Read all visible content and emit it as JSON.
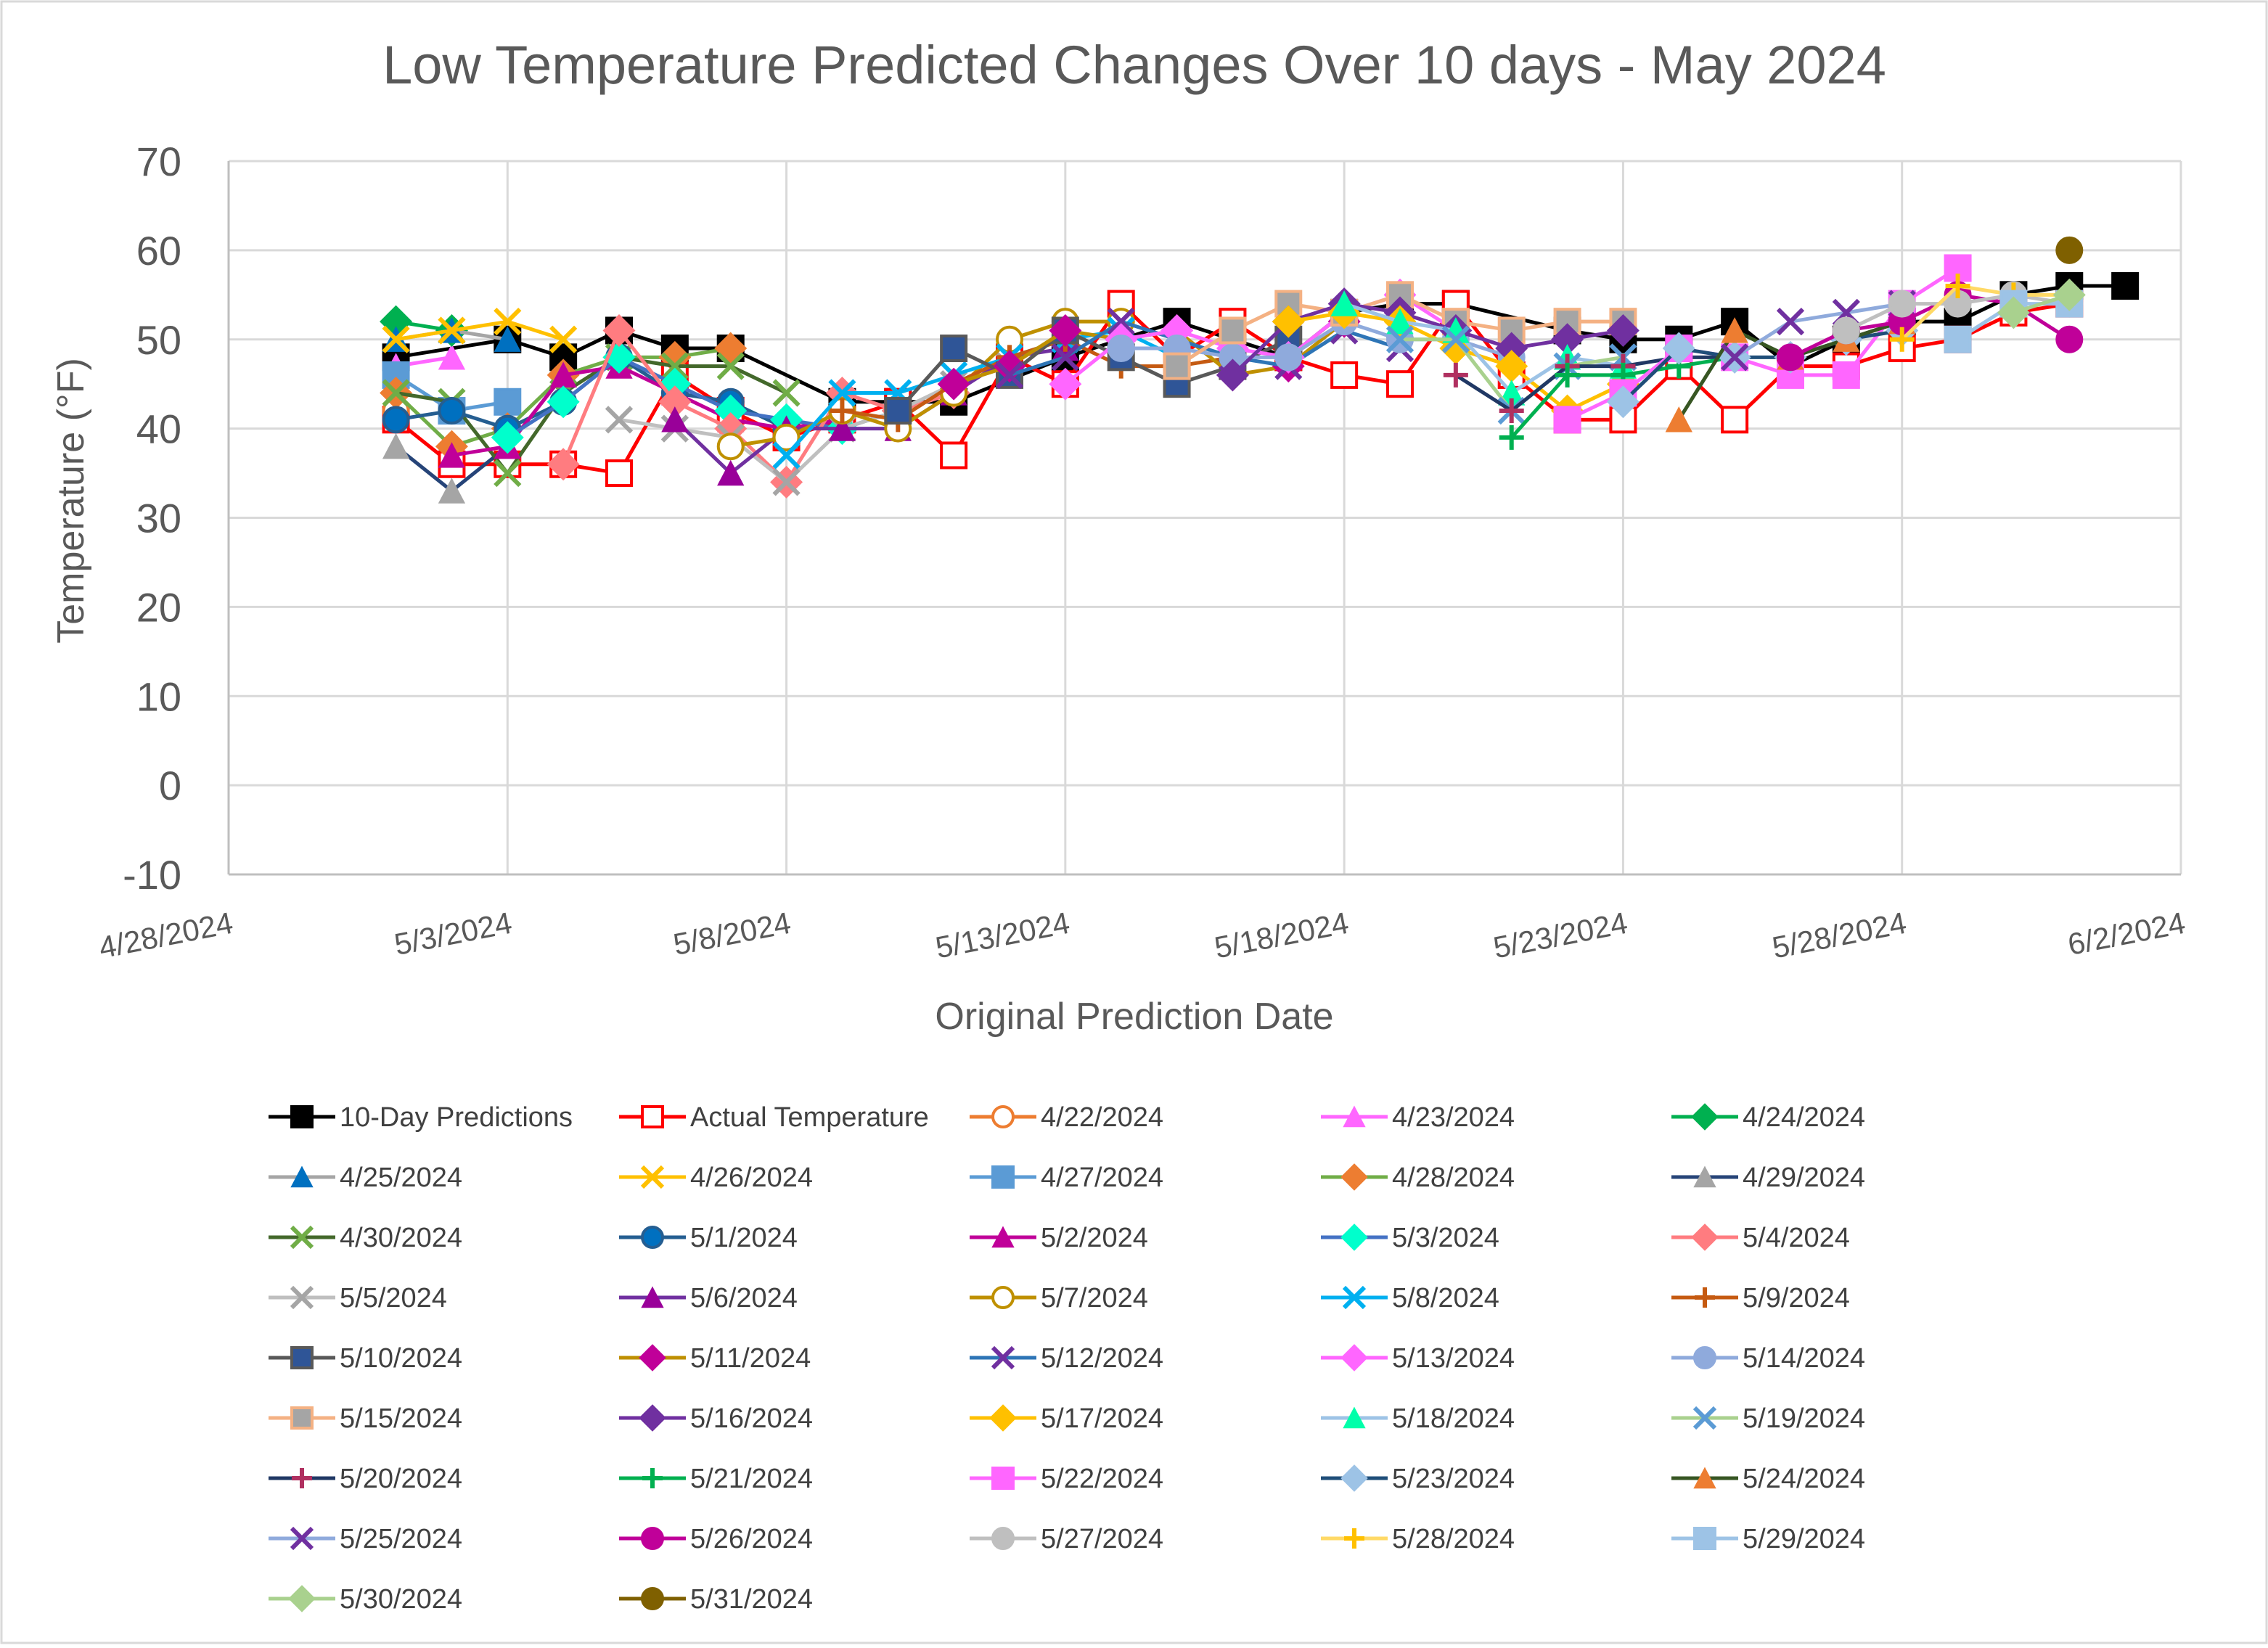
{
  "chart_data": {
    "type": "line",
    "title": "Low Temperature Predicted Changes Over 10 days - May 2024",
    "xlabel": "Original Prediction Date",
    "ylabel": "Temperature (°F)",
    "ylim": [
      -10,
      70
    ],
    "yticks": [
      "-10",
      "0",
      "10",
      "20",
      "30",
      "40",
      "50",
      "60",
      "70"
    ],
    "xlim": [
      0,
      35
    ],
    "xtick_values": [
      0,
      5,
      10,
      15,
      20,
      25,
      30,
      35
    ],
    "xticks": [
      "4/28/2024",
      "5/3/2024",
      "5/8/2024",
      "5/13/2024",
      "5/18/2024",
      "5/23/2024",
      "5/28/2024",
      "6/2/2024"
    ],
    "grid": true,
    "x_units": "days after 4/28/2024",
    "series": [
      {
        "name": "10-Day Predictions",
        "color": "#000000",
        "marker": "square",
        "fill": "#000000",
        "x": [
          3,
          5,
          6,
          7,
          8,
          9,
          11,
          12,
          13,
          15,
          17,
          18,
          19,
          20,
          21,
          22,
          24,
          25,
          26,
          27,
          28,
          29,
          30,
          31,
          32,
          33,
          34
        ],
        "y": [
          48,
          50,
          48,
          51,
          49,
          49,
          43,
          43,
          43,
          48,
          52,
          50,
          48,
          53,
          54,
          54,
          51,
          50,
          50,
          52,
          47,
          50,
          52,
          52,
          55,
          56,
          56
        ]
      },
      {
        "name": "Actual Temperature",
        "color": "#FF0000",
        "marker": "square",
        "fill": "#FFFFFF",
        "x": [
          3,
          4,
          5,
          6,
          7,
          8,
          9,
          10,
          11,
          12,
          13,
          14,
          15,
          16,
          17,
          18,
          19,
          20,
          21,
          22,
          23,
          24,
          25,
          26,
          27,
          28,
          29,
          30,
          31,
          32,
          33
        ],
        "y": [
          41,
          36,
          36,
          36,
          35,
          46,
          42,
          39,
          41,
          43,
          37,
          48,
          45,
          54,
          48,
          52,
          48,
          46,
          45,
          54,
          46,
          41,
          41,
          47,
          41,
          47,
          47,
          49,
          50,
          53,
          54
        ]
      },
      {
        "name": "4/22/2024",
        "color": "#ED7D31",
        "marker": "circle",
        "fill": "#FFFFFF",
        "x": [
          3
        ],
        "y": [
          42
        ]
      },
      {
        "name": "4/23/2024",
        "color": "#FF66FF",
        "marker": "triangle",
        "fill": "#FF66FF",
        "x": [
          3,
          4
        ],
        "y": [
          47,
          48
        ]
      },
      {
        "name": "4/24/2024",
        "color": "#00B050",
        "marker": "diamond",
        "fill": "#00B050",
        "x": [
          3,
          4
        ],
        "y": [
          52,
          51
        ]
      },
      {
        "name": "4/25/2024",
        "color": "#A5A5A5",
        "marker": "triangle",
        "fill": "#0070C0",
        "x": [
          3,
          4,
          5
        ],
        "y": [
          50,
          51,
          50
        ]
      },
      {
        "name": "4/26/2024",
        "color": "#FFC000",
        "marker": "x",
        "fill": "#FFC000",
        "x": [
          3,
          4,
          5,
          6
        ],
        "y": [
          50,
          51,
          52,
          50
        ]
      },
      {
        "name": "4/27/2024",
        "color": "#5B9BD5",
        "marker": "square",
        "fill": "#5B9BD5",
        "x": [
          3,
          4,
          5
        ],
        "y": [
          46,
          42,
          43
        ]
      },
      {
        "name": "4/28/2024",
        "color": "#70AD47",
        "marker": "diamond",
        "fill": "#ED7D31",
        "x": [
          3,
          4,
          5,
          6,
          7,
          8,
          9
        ],
        "y": [
          44,
          38,
          40,
          46,
          48,
          48,
          49
        ]
      },
      {
        "name": "4/29/2024",
        "color": "#264478",
        "marker": "triangle",
        "fill": "#A5A5A5",
        "x": [
          3,
          4,
          5,
          6
        ],
        "y": [
          38,
          33,
          38,
          46
        ]
      },
      {
        "name": "4/30/2024",
        "color": "#43682B",
        "marker": "x",
        "fill": "#70AD47",
        "x": [
          3,
          4,
          5,
          6,
          7,
          8,
          9,
          10
        ],
        "y": [
          44,
          43,
          35,
          44,
          48,
          47,
          47,
          44
        ]
      },
      {
        "name": "5/1/2024",
        "color": "#255E91",
        "marker": "circle",
        "fill": "#0070C0",
        "x": [
          3,
          4,
          5,
          6,
          7,
          8,
          9,
          10
        ],
        "y": [
          41,
          42,
          40,
          43,
          48,
          44,
          43,
          40
        ]
      },
      {
        "name": "5/2/2024",
        "color": "#C00099",
        "marker": "triangle",
        "fill": "#C00099",
        "x": [
          4,
          5,
          6,
          7,
          8,
          9,
          10,
          11
        ],
        "y": [
          37,
          38,
          46,
          47,
          44,
          41,
          40,
          41
        ]
      },
      {
        "name": "5/3/2024",
        "color": "#4472C4",
        "marker": "diamond",
        "fill": "#00FFCC",
        "x": [
          5,
          6,
          7,
          8,
          9,
          10,
          11,
          12
        ],
        "y": [
          39,
          43,
          48,
          45,
          42,
          41,
          40,
          42
        ]
      },
      {
        "name": "5/4/2024",
        "color": "#FF7C80",
        "marker": "diamond",
        "fill": "#FF7C80",
        "x": [
          6,
          7,
          8,
          9,
          10,
          11,
          12,
          13
        ],
        "y": [
          36,
          51,
          43,
          40,
          34,
          44,
          42,
          44
        ]
      },
      {
        "name": "5/5/2024",
        "color": "#BFBFBF",
        "marker": "x",
        "fill": "#A5A5A5",
        "x": [
          7,
          8,
          9,
          10,
          11,
          12,
          13,
          14
        ],
        "y": [
          41,
          40,
          39,
          34,
          40,
          42,
          45,
          47
        ]
      },
      {
        "name": "5/6/2024",
        "color": "#7030A0",
        "marker": "triangle",
        "fill": "#990099",
        "x": [
          8,
          9,
          10,
          11,
          12,
          13,
          14,
          15
        ],
        "y": [
          41,
          35,
          40,
          40,
          40,
          44,
          48,
          49
        ]
      },
      {
        "name": "5/7/2024",
        "color": "#BF9000",
        "marker": "circle",
        "fill": "#FFFFFF",
        "x": [
          9,
          10,
          11,
          12,
          13,
          14,
          15,
          16
        ],
        "y": [
          38,
          39,
          42,
          40,
          44,
          50,
          52,
          52
        ]
      },
      {
        "name": "5/8/2024",
        "color": "#00B0F0",
        "marker": "x",
        "fill": "#00B0F0",
        "x": [
          10,
          11,
          12,
          13,
          14,
          15,
          16,
          17
        ],
        "y": [
          37,
          44,
          44,
          46,
          48,
          50,
          51,
          48
        ]
      },
      {
        "name": "5/9/2024",
        "color": "#C55A11",
        "marker": "plus",
        "fill": "#C55A11",
        "x": [
          11,
          12,
          13,
          14,
          15,
          16,
          17,
          18
        ],
        "y": [
          42,
          41,
          45,
          48,
          50,
          47,
          47,
          48
        ]
      },
      {
        "name": "5/10/2024",
        "color": "#595959",
        "marker": "square",
        "fill": "#2F5597",
        "x": [
          12,
          13,
          14,
          15,
          16,
          17,
          18,
          19
        ],
        "y": [
          42,
          49,
          46,
          51,
          48,
          45,
          47,
          50
        ]
      },
      {
        "name": "5/11/2024",
        "color": "#BF9000",
        "marker": "diamond",
        "fill": "#C00099",
        "x": [
          13,
          14,
          15,
          16,
          17,
          18,
          19,
          20
        ],
        "y": [
          45,
          47,
          51,
          50,
          51,
          46,
          47,
          52
        ]
      },
      {
        "name": "5/12/2024",
        "color": "#2E75B6",
        "marker": "x",
        "fill": "#7030A0",
        "x": [
          14,
          15,
          16,
          17,
          18,
          19,
          20,
          21
        ],
        "y": [
          46,
          48,
          52,
          50,
          48,
          47,
          51,
          49
        ]
      },
      {
        "name": "5/13/2024",
        "color": "#FF66FF",
        "marker": "diamond",
        "fill": "#FF66FF",
        "x": [
          15,
          16,
          17,
          18,
          19,
          20,
          21,
          22
        ],
        "y": [
          45,
          50,
          51,
          49,
          48,
          53,
          55,
          51
        ]
      },
      {
        "name": "5/14/2024",
        "color": "#8FAADC",
        "marker": "circle",
        "fill": "#8FAADC",
        "x": [
          16,
          17,
          18,
          19,
          20,
          21,
          22,
          23
        ],
        "y": [
          49,
          49,
          48,
          48,
          52,
          50,
          50,
          48
        ]
      },
      {
        "name": "5/15/2024",
        "color": "#F4B183",
        "marker": "square",
        "fill": "#A5A5A5",
        "x": [
          17,
          18,
          19,
          20,
          21,
          22,
          23,
          24,
          25
        ],
        "y": [
          47,
          51,
          54,
          53,
          55,
          52,
          51,
          52,
          52
        ]
      },
      {
        "name": "5/16/2024",
        "color": "#7030A0",
        "marker": "diamond",
        "fill": "#7030A0",
        "x": [
          18,
          19,
          20,
          21,
          22,
          23,
          24,
          25
        ],
        "y": [
          46,
          52,
          54,
          53,
          51,
          49,
          50,
          51
        ]
      },
      {
        "name": "5/17/2024",
        "color": "#FFC000",
        "marker": "diamond",
        "fill": "#FFC000",
        "x": [
          19,
          20,
          21,
          22,
          23,
          24,
          25
        ],
        "y": [
          52,
          53,
          52,
          49,
          47,
          42,
          45
        ]
      },
      {
        "name": "5/18/2024",
        "color": "#9DC3E6",
        "marker": "triangle",
        "fill": "#00FFAA",
        "x": [
          20,
          21,
          22,
          23,
          24,
          25
        ],
        "y": [
          54,
          52,
          51,
          44,
          48,
          47
        ]
      },
      {
        "name": "5/19/2024",
        "color": "#A9D18E",
        "marker": "x",
        "fill": "#5B9BD5",
        "x": [
          21,
          22,
          23,
          24,
          25
        ],
        "y": [
          50,
          50,
          42,
          47,
          48
        ]
      },
      {
        "name": "5/20/2024",
        "color": "#203864",
        "marker": "plus",
        "fill": "#B03060",
        "x": [
          22,
          23,
          24,
          25,
          26,
          27
        ],
        "y": [
          46,
          42,
          47,
          47,
          48,
          48
        ]
      },
      {
        "name": "5/21/2024",
        "color": "#00B050",
        "marker": "plus",
        "fill": "#00B050",
        "x": [
          23,
          24,
          25,
          26,
          27
        ],
        "y": [
          39,
          46,
          46,
          47,
          48
        ]
      },
      {
        "name": "5/22/2024",
        "color": "#FF66FF",
        "marker": "square",
        "fill": "#FF66FF",
        "x": [
          24,
          25,
          26,
          27,
          28,
          29,
          30,
          31
        ],
        "y": [
          41,
          44,
          49,
          48,
          46,
          46,
          54,
          58
        ]
      },
      {
        "name": "5/23/2024",
        "color": "#1F4E79",
        "marker": "diamond",
        "fill": "#9DC3E6",
        "x": [
          25,
          26,
          27,
          28,
          29,
          30
        ],
        "y": [
          43,
          49,
          48,
          48,
          50,
          51
        ]
      },
      {
        "name": "5/24/2024",
        "color": "#375623",
        "marker": "triangle",
        "fill": "#ED7D31",
        "x": [
          26,
          27,
          28,
          29,
          30
        ],
        "y": [
          41,
          51,
          48,
          50,
          52
        ]
      },
      {
        "name": "5/25/2024",
        "color": "#8FAADC",
        "marker": "x",
        "fill": "#7030A0",
        "x": [
          27,
          28,
          29,
          30
        ],
        "y": [
          48,
          52,
          53,
          54
        ]
      },
      {
        "name": "5/26/2024",
        "color": "#C00099",
        "marker": "circle",
        "fill": "#C00099",
        "x": [
          28,
          29,
          30,
          31,
          32,
          33
        ],
        "y": [
          48,
          51,
          52,
          55,
          54,
          50
        ]
      },
      {
        "name": "5/27/2024",
        "color": "#BFBFBF",
        "marker": "circle",
        "fill": "#BFBFBF",
        "x": [
          29,
          30,
          31,
          32,
          33
        ],
        "y": [
          51,
          54,
          54,
          55,
          54
        ]
      },
      {
        "name": "5/28/2024",
        "color": "#FFD966",
        "marker": "plus",
        "fill": "#FFC000",
        "x": [
          30,
          31,
          32,
          33
        ],
        "y": [
          50,
          56,
          55,
          55
        ]
      },
      {
        "name": "5/29/2024",
        "color": "#9DC3E6",
        "marker": "square",
        "fill": "#9DC3E6",
        "x": [
          31,
          32,
          33
        ],
        "y": [
          50,
          54,
          54
        ]
      },
      {
        "name": "5/30/2024",
        "color": "#A9D18E",
        "marker": "diamond",
        "fill": "#A9D18E",
        "x": [
          32,
          33
        ],
        "y": [
          53,
          55
        ]
      },
      {
        "name": "5/31/2024",
        "color": "#7F6000",
        "marker": "circle",
        "fill": "#7F6000",
        "x": [
          33
        ],
        "y": [
          60
        ]
      }
    ]
  }
}
